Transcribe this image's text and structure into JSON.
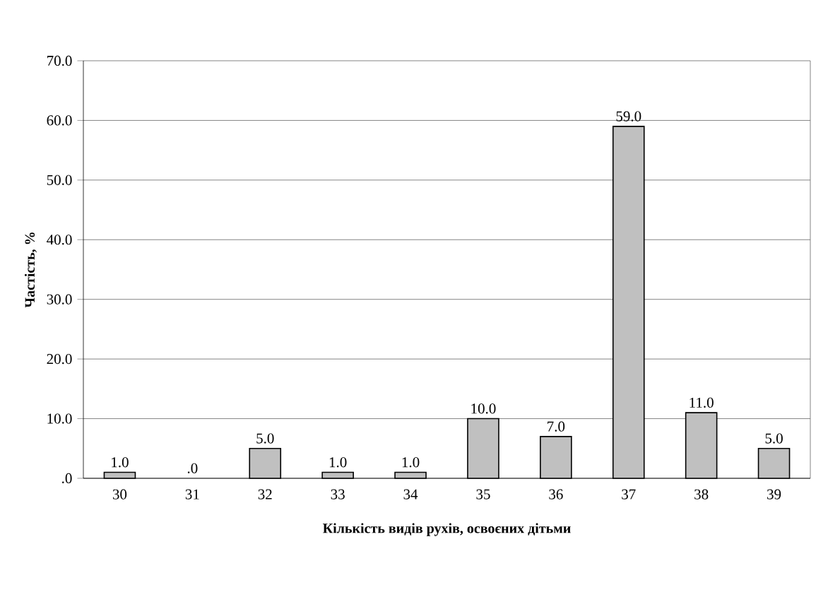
{
  "chart_data": {
    "type": "bar",
    "categories": [
      "30",
      "31",
      "32",
      "33",
      "34",
      "35",
      "36",
      "37",
      "38",
      "39"
    ],
    "values": [
      1.0,
      0.0,
      5.0,
      1.0,
      1.0,
      10.0,
      7.0,
      59.0,
      11.0,
      5.0
    ],
    "value_labels": [
      "1.0",
      ".0",
      "5.0",
      "1.0",
      "1.0",
      "10.0",
      "7.0",
      "59.0",
      "11.0",
      "5.0"
    ],
    "color": "#c0c0c0",
    "xlabel": "Кількість видів рухів, освоєних дітьми",
    "ylabel": "Частість, %",
    "ylim": [
      0,
      70
    ],
    "yticks": [
      {
        "value": 0,
        "label": ".0"
      },
      {
        "value": 10,
        "label": "10.0"
      },
      {
        "value": 20,
        "label": "20.0"
      },
      {
        "value": 30,
        "label": "30.0"
      },
      {
        "value": 40,
        "label": "40.0"
      },
      {
        "value": 50,
        "label": "50.0"
      },
      {
        "value": 60,
        "label": "60.0"
      },
      {
        "value": 70,
        "label": "70.0"
      }
    ],
    "grid": "y"
  }
}
